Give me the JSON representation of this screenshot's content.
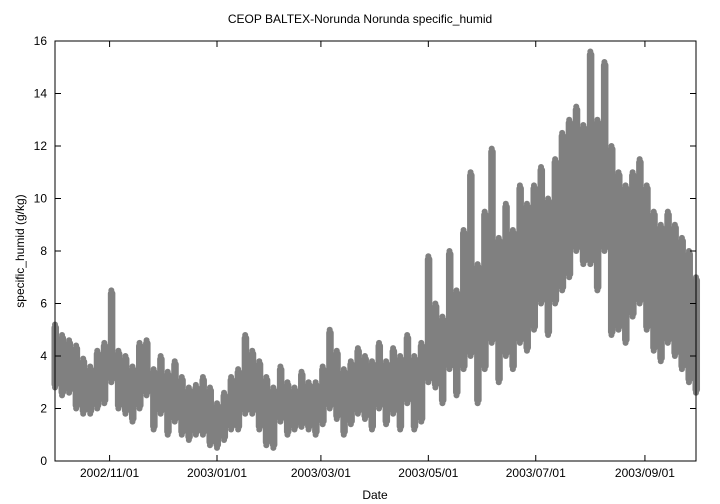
{
  "chart_data": {
    "type": "scatter",
    "title": "CEOP BALTEX-Norunda Norunda  specific_humid",
    "xlabel": "Date",
    "ylabel": "specific_humid (g/kg)",
    "xlim": [
      "2002-10-01",
      "2003-09-30"
    ],
    "ylim": [
      0,
      16
    ],
    "yticks": [
      0,
      2,
      4,
      6,
      8,
      10,
      12,
      14,
      16
    ],
    "xticks": [
      "2002/11/01",
      "2003/01/01",
      "2003/03/01",
      "2003/05/01",
      "2003/07/01",
      "2003/09/01"
    ],
    "xtick_dates": [
      "2002-11-01",
      "2003-01-01",
      "2003-03-01",
      "2003-05-01",
      "2003-07-01",
      "2003-09-01"
    ],
    "marker_color": "#808080",
    "grid": false,
    "series": [
      {
        "x": [
          "2002-10-01",
          "2002-10-05",
          "2002-10-09",
          "2002-10-13",
          "2002-10-17",
          "2002-10-21",
          "2002-10-25",
          "2002-10-29",
          "2002-11-02",
          "2002-11-06",
          "2002-11-10",
          "2002-11-14",
          "2002-11-18",
          "2002-11-22",
          "2002-11-26",
          "2002-11-30",
          "2002-12-04",
          "2002-12-08",
          "2002-12-12",
          "2002-12-16",
          "2002-12-20",
          "2002-12-24",
          "2002-12-28",
          "2003-01-01",
          "2003-01-05",
          "2003-01-09",
          "2003-01-13",
          "2003-01-17",
          "2003-01-21",
          "2003-01-25",
          "2003-01-29",
          "2003-02-02",
          "2003-02-06",
          "2003-02-10",
          "2003-02-14",
          "2003-02-18",
          "2003-02-22",
          "2003-02-26",
          "2003-03-02",
          "2003-03-06",
          "2003-03-10",
          "2003-03-14",
          "2003-03-18",
          "2003-03-22",
          "2003-03-26",
          "2003-03-30",
          "2003-04-03",
          "2003-04-07",
          "2003-04-11",
          "2003-04-15",
          "2003-04-19",
          "2003-04-23",
          "2003-04-27",
          "2003-05-01",
          "2003-05-05",
          "2003-05-09",
          "2003-05-13",
          "2003-05-17",
          "2003-05-21",
          "2003-05-25",
          "2003-05-29",
          "2003-06-02",
          "2003-06-06",
          "2003-06-10",
          "2003-06-14",
          "2003-06-18",
          "2003-06-22",
          "2003-06-26",
          "2003-06-30",
          "2003-07-04",
          "2003-07-08",
          "2003-07-12",
          "2003-07-16",
          "2003-07-20",
          "2003-07-24",
          "2003-07-28",
          "2003-08-01",
          "2003-08-05",
          "2003-08-09",
          "2003-08-13",
          "2003-08-17",
          "2003-08-21",
          "2003-08-25",
          "2003-08-29",
          "2003-09-02",
          "2003-09-06",
          "2003-09-10",
          "2003-09-14",
          "2003-09-18",
          "2003-09-22",
          "2003-09-26",
          "2003-09-30"
        ],
        "y": [
          4.0,
          3.5,
          3.6,
          3.2,
          2.8,
          2.6,
          3.0,
          3.2,
          4.5,
          3.0,
          2.9,
          2.5,
          3.1,
          3.4,
          2.2,
          2.8,
          2.0,
          2.6,
          2.0,
          1.5,
          1.8,
          2.0,
          1.5,
          1.2,
          1.6,
          2.0,
          2.2,
          3.0,
          2.8,
          2.2,
          1.8,
          1.5,
          2.5,
          2.0,
          1.8,
          2.2,
          2.0,
          2.0,
          2.5,
          3.2,
          2.8,
          2.2,
          2.5,
          3.0,
          2.8,
          2.5,
          3.2,
          2.5,
          3.0,
          2.5,
          3.5,
          2.5,
          3.0,
          4.5,
          4.2,
          3.5,
          5.0,
          4.0,
          5.5,
          6.5,
          4.8,
          5.8,
          6.8,
          5.5,
          6.5,
          5.8,
          7.0,
          6.8,
          7.5,
          8.5,
          7.2,
          8.5,
          9.0,
          9.5,
          10.5,
          10.0,
          10.5,
          9.5,
          11.0,
          8.5,
          8.0,
          7.5,
          8.5,
          9.0,
          7.8,
          7.0,
          6.5,
          7.5,
          7.0,
          6.5,
          6.0,
          5.5
        ],
        "y_low": [
          2.8,
          2.5,
          2.6,
          2.0,
          1.8,
          1.8,
          2.0,
          2.2,
          3.0,
          2.0,
          1.8,
          1.5,
          2.0,
          2.5,
          1.2,
          1.8,
          1.0,
          1.5,
          1.0,
          0.8,
          1.0,
          1.0,
          0.6,
          0.5,
          0.8,
          1.2,
          1.2,
          1.8,
          1.8,
          1.2,
          0.6,
          0.5,
          1.5,
          1.0,
          1.2,
          1.3,
          1.2,
          1.0,
          1.4,
          2.0,
          1.6,
          1.0,
          1.4,
          1.8,
          1.6,
          1.2,
          2.0,
          1.4,
          1.8,
          1.2,
          2.2,
          1.2,
          1.5,
          3.0,
          2.8,
          2.2,
          3.5,
          2.5,
          3.5,
          4.0,
          2.2,
          3.5,
          4.5,
          3.0,
          4.0,
          3.5,
          4.5,
          4.2,
          5.0,
          6.0,
          4.8,
          6.0,
          6.5,
          7.0,
          8.0,
          7.5,
          7.5,
          6.5,
          8.0,
          4.8,
          5.0,
          4.5,
          5.5,
          6.0,
          5.0,
          4.2,
          3.8,
          4.5,
          4.0,
          3.5,
          3.0,
          2.6
        ],
        "y_high": [
          5.2,
          4.8,
          4.6,
          4.4,
          3.9,
          3.6,
          4.2,
          4.5,
          6.5,
          4.2,
          4.0,
          3.6,
          4.5,
          4.6,
          3.5,
          4.0,
          3.4,
          3.8,
          3.2,
          2.8,
          2.9,
          3.2,
          2.8,
          2.2,
          2.6,
          3.2,
          3.5,
          4.8,
          4.2,
          3.8,
          3.2,
          2.8,
          3.6,
          3.0,
          2.8,
          3.4,
          3.0,
          3.0,
          3.6,
          5.0,
          4.2,
          3.5,
          3.8,
          4.3,
          4.0,
          3.8,
          4.5,
          3.8,
          4.3,
          4.0,
          4.8,
          4.0,
          4.5,
          7.8,
          6.0,
          5.5,
          8.0,
          6.5,
          8.8,
          11.0,
          7.5,
          9.5,
          11.9,
          8.5,
          9.8,
          8.8,
          10.5,
          9.8,
          10.5,
          11.2,
          10.0,
          11.5,
          12.5,
          13.0,
          13.5,
          12.8,
          15.6,
          13.0,
          15.2,
          12.0,
          11.0,
          10.5,
          11.0,
          11.5,
          10.5,
          9.5,
          9.0,
          9.5,
          9.0,
          8.5,
          8.0,
          7.0
        ]
      }
    ]
  }
}
